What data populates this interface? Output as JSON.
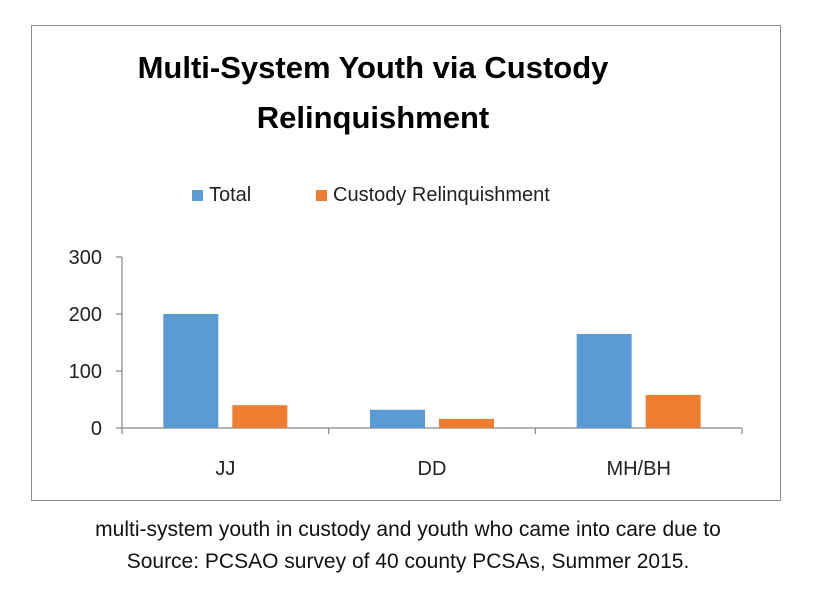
{
  "chart_data": {
    "type": "bar",
    "title": "Multi-System Youth via Custody Relinquishment",
    "title_lines": [
      "Multi-System Youth via Custody",
      "Relinquishment"
    ],
    "categories": [
      "JJ",
      "DD",
      "MH/BH"
    ],
    "series": [
      {
        "name": "Total",
        "values": [
          200,
          32,
          165
        ],
        "color": "#5b9bd5"
      },
      {
        "name": "Custody Relinquishment",
        "values": [
          40,
          16,
          58
        ],
        "color": "#ed7d31"
      }
    ],
    "ylim": [
      0,
      300
    ],
    "yticks": [
      0,
      100,
      200,
      300
    ],
    "grid": false,
    "legend": "top",
    "xlabel": "",
    "ylabel": ""
  },
  "caption": {
    "line1": "multi-system youth in custody and youth who came into care due to",
    "line2": "Source: PCSAO survey of 40 county PCSAs, Summer 2015."
  }
}
